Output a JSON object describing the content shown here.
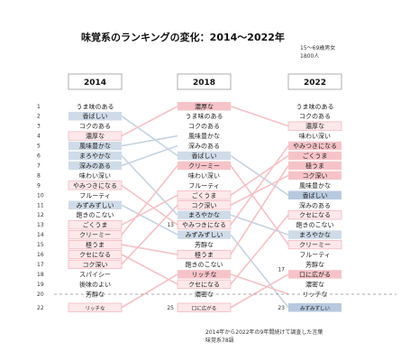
{
  "title": "味覚系のランキングの変化：2014〜2022年",
  "sample_note": [
    "15～69歳男女",
    "1800人"
  ],
  "footnote": [
    "2014年から2022年の9年間続けて調査した言葉",
    "味覚系78語"
  ],
  "colors": {
    "pink_fill": "#f6c4c8",
    "light_pink_fill": "#fde8ea",
    "pink_border": "#f0b3b8",
    "blue_fill": "#cfdbe8",
    "mid_blue_fill": "#b7c9de",
    "pink_line": "#f4c1c5",
    "blue_line": "#c5d3e3",
    "header_border": "#999999"
  },
  "chart_data": {
    "type": "table",
    "rank_labels": [
      "1",
      "2",
      "3",
      "4",
      "5",
      "6",
      "7",
      "8",
      "9",
      "10",
      "11",
      "12",
      "13",
      "14",
      "15",
      "16",
      "17",
      "18",
      "19",
      "20",
      "22"
    ],
    "columns": [
      {
        "year": "2014",
        "items": [
          {
            "rank": 1,
            "label": "うま味のある",
            "style": "none"
          },
          {
            "rank": 2,
            "label": "香ばしい",
            "style": "blue"
          },
          {
            "rank": 3,
            "label": "コクのある",
            "style": "none"
          },
          {
            "rank": 4,
            "label": "濃厚な",
            "style": "pink_outline"
          },
          {
            "rank": 5,
            "label": "風味豊かな",
            "style": "blue"
          },
          {
            "rank": 6,
            "label": "まろやかな",
            "style": "blue"
          },
          {
            "rank": 7,
            "label": "深みのある",
            "style": "blue"
          },
          {
            "rank": 8,
            "label": "味わい深い",
            "style": "none"
          },
          {
            "rank": 9,
            "label": "やみつきになる",
            "style": "pink_outline"
          },
          {
            "rank": 10,
            "label": "フルーティ",
            "style": "none"
          },
          {
            "rank": 11,
            "label": "みずみずしい",
            "style": "blue"
          },
          {
            "rank": 12,
            "label": "飽きのこない",
            "style": "none"
          },
          {
            "rank": 13,
            "label": "ごくうま",
            "style": "pink_outline"
          },
          {
            "rank": 14,
            "label": "クリーミー",
            "style": "pink_outline"
          },
          {
            "rank": 15,
            "label": "極うま",
            "style": "pink_outline"
          },
          {
            "rank": 16,
            "label": "クセになる",
            "style": "pink_outline"
          },
          {
            "rank": 17,
            "label": "コク深い",
            "style": "pink_outline"
          },
          {
            "rank": 18,
            "label": "スパイシー",
            "style": "none"
          },
          {
            "rank": 19,
            "label": "後味のよい",
            "style": "none"
          },
          {
            "rank": 20,
            "label": "芳醇な",
            "style": "none"
          },
          {
            "rank": 22,
            "label": "リッチな",
            "style": "pink_outline"
          }
        ]
      },
      {
        "year": "2018",
        "items": [
          {
            "rank": 1,
            "label": "濃厚な",
            "style": "pink"
          },
          {
            "rank": 2,
            "label": "うま味のある",
            "style": "none"
          },
          {
            "rank": 3,
            "label": "コクのある",
            "style": "none"
          },
          {
            "rank": 4,
            "label": "風味豊かな",
            "style": "none"
          },
          {
            "rank": 5,
            "label": "深みのある",
            "style": "none"
          },
          {
            "rank": 6,
            "label": "香ばしい",
            "style": "blue"
          },
          {
            "rank": 7,
            "label": "クリーミー",
            "style": "pink"
          },
          {
            "rank": 8,
            "label": "味わい深い",
            "style": "none"
          },
          {
            "rank": 9,
            "label": "フルーティ",
            "style": "none"
          },
          {
            "rank": 10,
            "label": "ごくうま",
            "style": "pink_outline"
          },
          {
            "rank": 11,
            "label": "コク深い",
            "style": "pink_outline"
          },
          {
            "rank": 12,
            "label": "まろやかな",
            "style": "blue"
          },
          {
            "rank": 13,
            "label": "やみつきになる",
            "style": "pink_outline"
          },
          {
            "rank": 14,
            "label": "みずみずしい",
            "style": "blue"
          },
          {
            "rank": 15,
            "label": "芳醇な",
            "style": "none"
          },
          {
            "rank": 16,
            "label": "極うま",
            "style": "pink_outline"
          },
          {
            "rank": 17,
            "label": "飽きのこない",
            "style": "none"
          },
          {
            "rank": 18,
            "label": "リッチな",
            "style": "pink"
          },
          {
            "rank": 19,
            "label": "クセになる",
            "style": "pink_outline"
          },
          {
            "rank": 20,
            "label": "濃密な",
            "style": "none"
          },
          {
            "rank": 25,
            "label": "口に広がる",
            "style": "pink_outline"
          }
        ]
      },
      {
        "year": "2022",
        "items": [
          {
            "rank": 1,
            "label": "うま味のある",
            "style": "none"
          },
          {
            "rank": 2,
            "label": "コクのある",
            "style": "none"
          },
          {
            "rank": 3,
            "label": "濃厚な",
            "style": "pink_outline"
          },
          {
            "rank": 4,
            "label": "味わい深い",
            "style": "none"
          },
          {
            "rank": 5,
            "label": "やみつきになる",
            "style": "pink"
          },
          {
            "rank": 6,
            "label": "ごくうま",
            "style": "pink"
          },
          {
            "rank": 7,
            "label": "極うま",
            "style": "pink"
          },
          {
            "rank": 8,
            "label": "コク深い",
            "style": "pink"
          },
          {
            "rank": 9,
            "label": "風味豊かな",
            "style": "none"
          },
          {
            "rank": 10,
            "label": "香ばしい",
            "style": "blue_dark"
          },
          {
            "rank": 11,
            "label": "深みのある",
            "style": "none"
          },
          {
            "rank": 12,
            "label": "クセになる",
            "style": "pink_outline"
          },
          {
            "rank": 13,
            "label": "飽きのこない",
            "style": "none"
          },
          {
            "rank": 14,
            "label": "まろやかな",
            "style": "blue"
          },
          {
            "rank": 15,
            "label": "クリーミー",
            "style": "pink_outline"
          },
          {
            "rank": 16,
            "label": "フルーティ",
            "style": "none"
          },
          {
            "rank": 17,
            "label": "芳醇な",
            "style": "none"
          },
          {
            "rank": 18,
            "label": "口に広がる",
            "style": "pink"
          },
          {
            "rank": 19,
            "label": "濃密な",
            "style": "none"
          },
          {
            "rank": 20,
            "label": "リッチな",
            "style": "none"
          },
          {
            "rank": 23,
            "label": "みずみずしい",
            "style": "blue_dark"
          }
        ]
      }
    ],
    "side_rank_labels": [
      {
        "column": "2018",
        "label": "13"
      },
      {
        "column": "2018",
        "label": "25"
      },
      {
        "column": "2022",
        "label": "17"
      },
      {
        "column": "2022",
        "label": "23"
      }
    ]
  }
}
